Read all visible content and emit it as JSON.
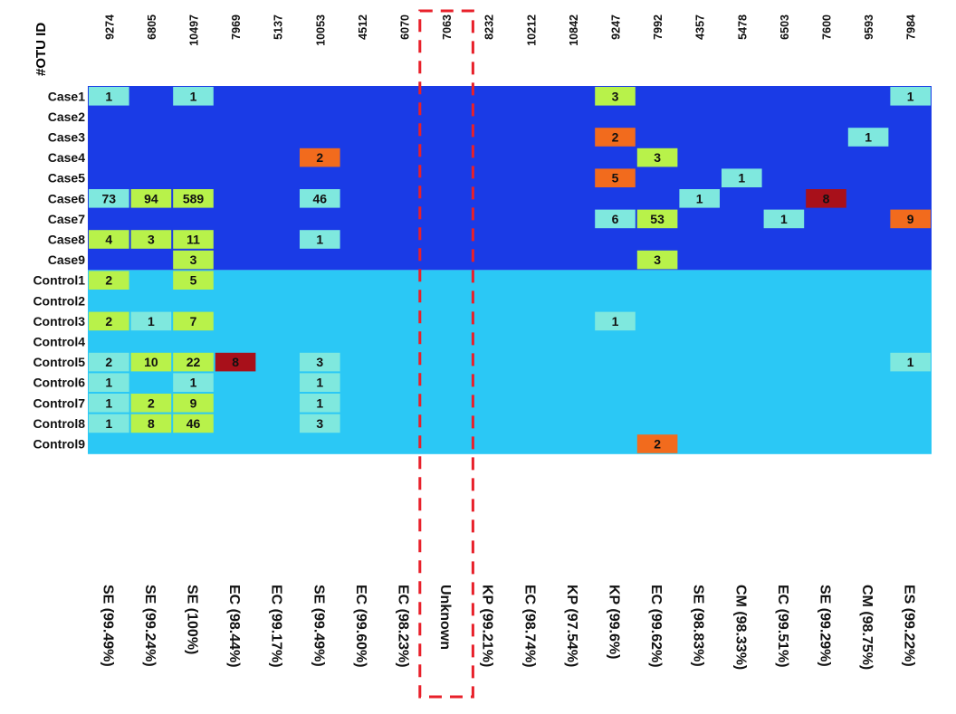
{
  "chart_data": {
    "type": "heatmap",
    "corner_label": "#OTU ID",
    "otu_ids": [
      "9274",
      "6805",
      "10497",
      "7969",
      "5137",
      "10053",
      "4512",
      "6070",
      "7063",
      "8232",
      "10212",
      "10842",
      "9247",
      "7992",
      "4357",
      "5478",
      "6503",
      "7600",
      "9593",
      "7984"
    ],
    "taxa": [
      "SE (99.49%)",
      "SE (99.24%)",
      "SE (100%)",
      "EC (98.44%)",
      "EC (99.17%)",
      "SE (99.49%)",
      "EC (99.60%)",
      "EC (98.23%)",
      "Unknown",
      "KP (99.21%)",
      "EC (98.74%)",
      "KP (97.54%)",
      "KP (99.6%)",
      "EC (99.62%)",
      "SE (98.83%)",
      "CM (98.33%)",
      "EC (99.51%)",
      "SE (99.29%)",
      "CM (98.75%)",
      "ES (99.22%)"
    ],
    "samples": [
      "Case1",
      "Case2",
      "Case3",
      "Case4",
      "Case5",
      "Case6",
      "Case7",
      "Case8",
      "Case9",
      "Control1",
      "Control2",
      "Control3",
      "Control4",
      "Control5",
      "Control6",
      "Control7",
      "Control8",
      "Control9"
    ],
    "groups": [
      {
        "name": "Case",
        "rows": 9,
        "color": "#1a3be6"
      },
      {
        "name": "Control",
        "rows": 9,
        "color": "#2bc8f5"
      }
    ],
    "highlighted_column": "7063",
    "cell_colors": {
      "low": "#7fe8de",
      "mid": "#b8f24a",
      "high": "#f26b1d",
      "top": "#a8101a"
    },
    "values": [
      [
        1,
        0,
        1,
        0,
        0,
        0,
        0,
        0,
        0,
        0,
        0,
        0,
        3,
        0,
        0,
        0,
        0,
        0,
        0,
        1
      ],
      [
        0,
        0,
        0,
        0,
        0,
        0,
        0,
        0,
        0,
        0,
        0,
        0,
        0,
        0,
        0,
        0,
        0,
        0,
        0,
        0
      ],
      [
        0,
        0,
        0,
        0,
        0,
        0,
        0,
        0,
        0,
        0,
        0,
        0,
        2,
        0,
        0,
        0,
        0,
        0,
        1,
        0
      ],
      [
        0,
        0,
        0,
        0,
        0,
        2,
        0,
        0,
        0,
        0,
        0,
        0,
        0,
        3,
        0,
        0,
        0,
        0,
        0,
        0
      ],
      [
        0,
        0,
        0,
        0,
        0,
        0,
        0,
        0,
        0,
        0,
        0,
        0,
        5,
        0,
        0,
        1,
        0,
        0,
        0,
        0
      ],
      [
        73,
        94,
        589,
        0,
        0,
        46,
        0,
        0,
        0,
        0,
        0,
        0,
        0,
        0,
        1,
        0,
        0,
        8,
        0,
        0
      ],
      [
        0,
        0,
        0,
        0,
        0,
        0,
        0,
        0,
        0,
        0,
        0,
        0,
        6,
        53,
        0,
        0,
        1,
        0,
        0,
        9
      ],
      [
        4,
        3,
        11,
        0,
        0,
        1,
        0,
        0,
        0,
        0,
        0,
        0,
        0,
        0,
        0,
        0,
        0,
        0,
        0,
        0
      ],
      [
        0,
        0,
        3,
        0,
        0,
        0,
        0,
        0,
        0,
        0,
        0,
        0,
        0,
        3,
        0,
        0,
        0,
        0,
        0,
        0
      ],
      [
        2,
        0,
        5,
        0,
        0,
        0,
        0,
        0,
        0,
        0,
        0,
        0,
        0,
        0,
        0,
        0,
        0,
        0,
        0,
        0
      ],
      [
        0,
        0,
        0,
        0,
        0,
        0,
        0,
        0,
        0,
        0,
        0,
        0,
        0,
        0,
        0,
        0,
        0,
        0,
        0,
        0
      ],
      [
        2,
        1,
        7,
        0,
        0,
        0,
        0,
        0,
        0,
        0,
        0,
        0,
        1,
        0,
        0,
        0,
        0,
        0,
        0,
        0
      ],
      [
        0,
        0,
        0,
        0,
        0,
        0,
        0,
        0,
        0,
        0,
        0,
        0,
        0,
        0,
        0,
        0,
        0,
        0,
        0,
        0
      ],
      [
        2,
        10,
        22,
        8,
        0,
        3,
        0,
        0,
        0,
        0,
        0,
        0,
        0,
        0,
        0,
        0,
        0,
        0,
        0,
        1
      ],
      [
        1,
        0,
        1,
        0,
        0,
        1,
        0,
        0,
        0,
        0,
        0,
        0,
        0,
        0,
        0,
        0,
        0,
        0,
        0,
        0
      ],
      [
        1,
        2,
        9,
        0,
        0,
        1,
        0,
        0,
        0,
        0,
        0,
        0,
        0,
        0,
        0,
        0,
        0,
        0,
        0,
        0
      ],
      [
        1,
        8,
        46,
        0,
        0,
        3,
        0,
        0,
        0,
        0,
        0,
        0,
        0,
        0,
        0,
        0,
        0,
        0,
        0,
        0
      ],
      [
        0,
        0,
        0,
        0,
        0,
        0,
        0,
        0,
        0,
        0,
        0,
        0,
        0,
        2,
        0,
        0,
        0,
        0,
        0,
        0
      ]
    ],
    "cell_color_class": [
      [
        "low",
        "",
        "low",
        "",
        "",
        "",
        "",
        "",
        "",
        "",
        "",
        "",
        "mid",
        "",
        "",
        "",
        "",
        "",
        "",
        "low"
      ],
      [
        "",
        "",
        "",
        "",
        "",
        "",
        "",
        "",
        "",
        "",
        "",
        "",
        "",
        "",
        "",
        "",
        "",
        "",
        "",
        ""
      ],
      [
        "",
        "",
        "",
        "",
        "",
        "",
        "",
        "",
        "",
        "",
        "",
        "",
        "high",
        "",
        "",
        "",
        "",
        "",
        "low",
        ""
      ],
      [
        "",
        "",
        "",
        "",
        "",
        "high",
        "",
        "",
        "",
        "",
        "",
        "",
        "",
        "mid",
        "",
        "",
        "",
        "",
        "",
        ""
      ],
      [
        "",
        "",
        "",
        "",
        "",
        "",
        "",
        "",
        "",
        "",
        "",
        "",
        "high",
        "",
        "",
        "low",
        "",
        "",
        "",
        ""
      ],
      [
        "low",
        "mid",
        "mid",
        "",
        "",
        "low",
        "",
        "",
        "",
        "",
        "",
        "",
        "",
        "",
        "low",
        "",
        "",
        "top",
        "",
        ""
      ],
      [
        "",
        "",
        "",
        "",
        "",
        "",
        "",
        "",
        "",
        "",
        "",
        "",
        "low",
        "mid",
        "",
        "",
        "low",
        "",
        "",
        "high"
      ],
      [
        "mid",
        "mid",
        "mid",
        "",
        "",
        "low",
        "",
        "",
        "",
        "",
        "",
        "",
        "",
        "",
        "",
        "",
        "",
        "",
        "",
        ""
      ],
      [
        "",
        "",
        "mid",
        "",
        "",
        "",
        "",
        "",
        "",
        "",
        "",
        "",
        "",
        "mid",
        "",
        "",
        "",
        "",
        "",
        ""
      ],
      [
        "mid",
        "",
        "mid",
        "",
        "",
        "",
        "",
        "",
        "",
        "",
        "",
        "",
        "",
        "",
        "",
        "",
        "",
        "",
        "",
        ""
      ],
      [
        "",
        "",
        "",
        "",
        "",
        "",
        "",
        "",
        "",
        "",
        "",
        "",
        "",
        "",
        "",
        "",
        "",
        "",
        "",
        ""
      ],
      [
        "mid",
        "low",
        "mid",
        "",
        "",
        "",
        "",
        "",
        "",
        "",
        "",
        "",
        "low",
        "",
        "",
        "",
        "",
        "",
        "",
        ""
      ],
      [
        "",
        "",
        "",
        "",
        "",
        "",
        "",
        "",
        "",
        "",
        "",
        "",
        "",
        "",
        "",
        "",
        "",
        "",
        "",
        ""
      ],
      [
        "low",
        "mid",
        "mid",
        "top",
        "",
        "low",
        "",
        "",
        "",
        "",
        "",
        "",
        "",
        "",
        "",
        "",
        "",
        "",
        "",
        "low"
      ],
      [
        "low",
        "",
        "low",
        "",
        "",
        "low",
        "",
        "",
        "",
        "",
        "",
        "",
        "",
        "",
        "",
        "",
        "",
        "",
        "",
        ""
      ],
      [
        "low",
        "mid",
        "mid",
        "",
        "",
        "low",
        "",
        "",
        "",
        "",
        "",
        "",
        "",
        "",
        "",
        "",
        "",
        "",
        "",
        ""
      ],
      [
        "low",
        "mid",
        "mid",
        "",
        "",
        "low",
        "",
        "",
        "",
        "",
        "",
        "",
        "",
        "",
        "",
        "",
        "",
        "",
        "",
        ""
      ],
      [
        "",
        "",
        "",
        "",
        "",
        "",
        "",
        "",
        "",
        "",
        "",
        "",
        "",
        "high",
        "",
        "",
        "",
        "",
        "",
        ""
      ]
    ]
  }
}
